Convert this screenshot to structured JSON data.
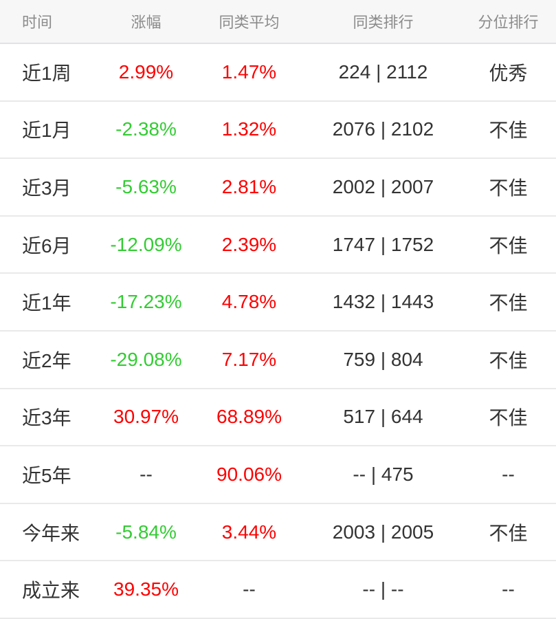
{
  "palette": {
    "up": "#fe0000",
    "down": "#33cc33",
    "neutral": "#333333",
    "header_text": "#8b8b8b",
    "header_bg": "#f7f7f8",
    "divider": "#e9e9e9"
  },
  "table": {
    "headers": [
      {
        "key": "period",
        "label": "时间"
      },
      {
        "key": "change",
        "label": "涨幅"
      },
      {
        "key": "peer_avg",
        "label": "同类平均"
      },
      {
        "key": "peer_rank",
        "label": "同类排行"
      },
      {
        "key": "percentile",
        "label": "分位排行"
      }
    ],
    "rows": [
      {
        "period": "近1周",
        "change": {
          "text": "2.99%",
          "tone": "up"
        },
        "peer_avg": {
          "text": "1.47%",
          "tone": "up"
        },
        "peer_rank": "224 | 2112",
        "percentile": "优秀"
      },
      {
        "period": "近1月",
        "change": {
          "text": "-2.38%",
          "tone": "down"
        },
        "peer_avg": {
          "text": "1.32%",
          "tone": "up"
        },
        "peer_rank": "2076 | 2102",
        "percentile": "不佳"
      },
      {
        "period": "近3月",
        "change": {
          "text": "-5.63%",
          "tone": "down"
        },
        "peer_avg": {
          "text": "2.81%",
          "tone": "up"
        },
        "peer_rank": "2002 | 2007",
        "percentile": "不佳"
      },
      {
        "period": "近6月",
        "change": {
          "text": "-12.09%",
          "tone": "down"
        },
        "peer_avg": {
          "text": "2.39%",
          "tone": "up"
        },
        "peer_rank": "1747 | 1752",
        "percentile": "不佳"
      },
      {
        "period": "近1年",
        "change": {
          "text": "-17.23%",
          "tone": "down"
        },
        "peer_avg": {
          "text": "4.78%",
          "tone": "up"
        },
        "peer_rank": "1432 | 1443",
        "percentile": "不佳"
      },
      {
        "period": "近2年",
        "change": {
          "text": "-29.08%",
          "tone": "down"
        },
        "peer_avg": {
          "text": "7.17%",
          "tone": "up"
        },
        "peer_rank": "759 | 804",
        "percentile": "不佳"
      },
      {
        "period": "近3年",
        "change": {
          "text": "30.97%",
          "tone": "up"
        },
        "peer_avg": {
          "text": "68.89%",
          "tone": "up"
        },
        "peer_rank": "517 | 644",
        "percentile": "不佳"
      },
      {
        "period": "近5年",
        "change": {
          "text": "--",
          "tone": "neutral"
        },
        "peer_avg": {
          "text": "90.06%",
          "tone": "up"
        },
        "peer_rank": "-- | 475",
        "percentile": "--"
      },
      {
        "period": "今年来",
        "change": {
          "text": "-5.84%",
          "tone": "down"
        },
        "peer_avg": {
          "text": "3.44%",
          "tone": "up"
        },
        "peer_rank": "2003 | 2005",
        "percentile": "不佳"
      },
      {
        "period": "成立来",
        "change": {
          "text": "39.35%",
          "tone": "up"
        },
        "peer_avg": {
          "text": "--",
          "tone": "neutral"
        },
        "peer_rank": "-- | --",
        "percentile": "--"
      }
    ]
  }
}
